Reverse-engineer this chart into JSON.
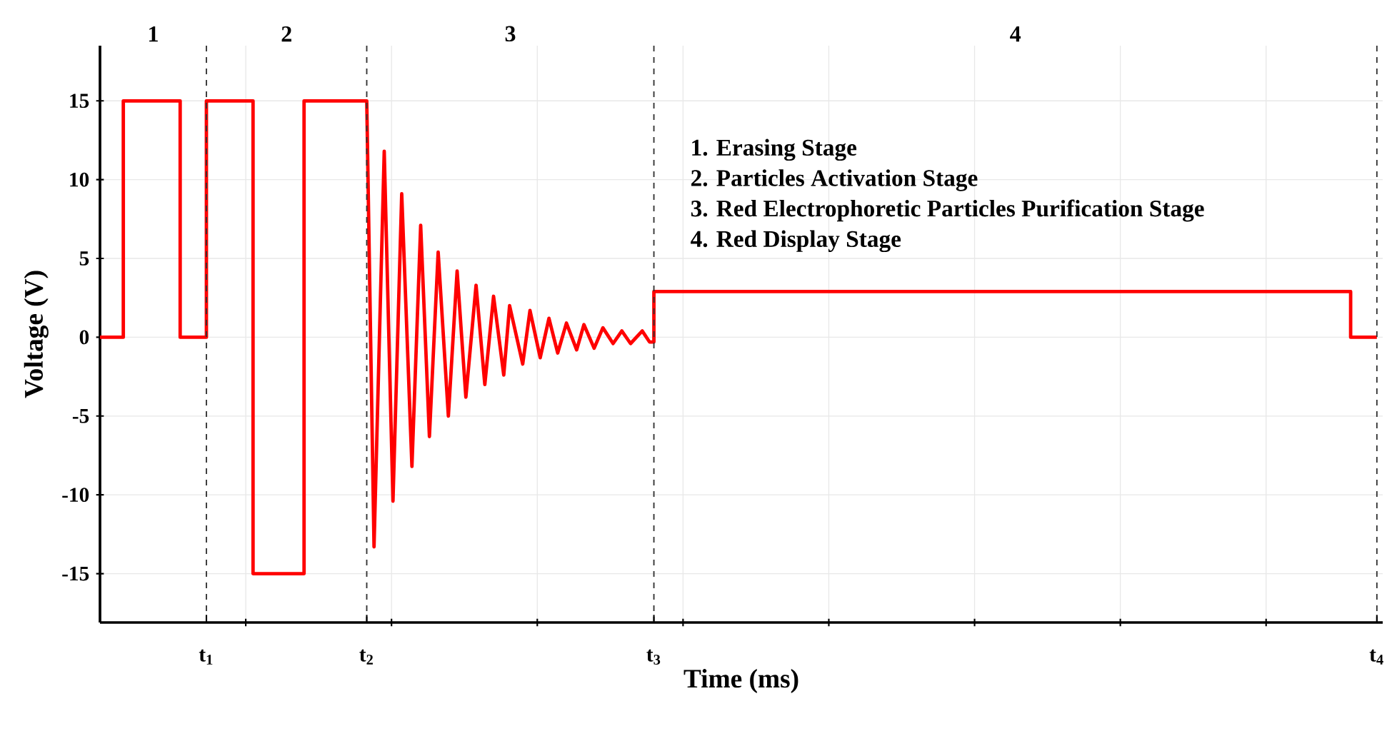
{
  "chart_data": {
    "type": "line",
    "xlabel": "Time (ms)",
    "ylabel": "Voltage (V)",
    "x": [
      0,
      0.16,
      0.16,
      0.55,
      0.55,
      0.73,
      0.73,
      1.05,
      1.05,
      1.4,
      1.4,
      1.83,
      1.88,
      1.95,
      2.01,
      2.07,
      2.14,
      2.2,
      2.26,
      2.32,
      2.39,
      2.45,
      2.51,
      2.58,
      2.64,
      2.7,
      2.77,
      2.81,
      2.9,
      2.95,
      3.02,
      3.08,
      3.14,
      3.2,
      3.27,
      3.32,
      3.39,
      3.45,
      3.52,
      3.58,
      3.64,
      3.72,
      3.77,
      3.8,
      3.8,
      8.58,
      8.58,
      8.76
    ],
    "series": [
      {
        "color": "#ff0000",
        "values": [
          0,
          0,
          15,
          15,
          0,
          0,
          15,
          15,
          -15,
          -15,
          15,
          15,
          -13.3,
          11.8,
          -10.4,
          9.1,
          -8.2,
          7.1,
          -6.3,
          5.4,
          -5.0,
          4.2,
          -3.8,
          3.3,
          -3.0,
          2.6,
          -2.4,
          2.0,
          -1.7,
          1.7,
          -1.3,
          1.2,
          -1.0,
          0.9,
          -0.8,
          0.8,
          -0.7,
          0.6,
          -0.4,
          0.4,
          -0.4,
          0.4,
          -0.3,
          -0.3,
          2.9,
          2.9,
          0,
          0
        ]
      }
    ],
    "xlim": [
      0,
      8.8
    ],
    "ylim": [
      -18.1,
      18.5
    ],
    "tick_labels": "y",
    "xticks": [
      {
        "value": 1,
        "label": null
      },
      {
        "value": 2,
        "label": null
      },
      {
        "value": 3,
        "label": null
      },
      {
        "value": 4,
        "label": null
      },
      {
        "value": 5,
        "label": null
      },
      {
        "value": 6,
        "label": null
      },
      {
        "value": 7,
        "label": null
      },
      {
        "value": 8,
        "label": null
      }
    ],
    "yticks": [
      -15,
      -10,
      -5,
      0,
      5,
      10,
      15
    ],
    "grid": true,
    "ref_lines": [
      {
        "axis": "x",
        "value": 0.73,
        "label": "t$_{1}$",
        "color": "#333333",
        "line_style": "dashed"
      },
      {
        "axis": "x",
        "value": 1.83,
        "label": "t$_{2}$",
        "color": "#333333",
        "line_style": "dashed"
      },
      {
        "axis": "x",
        "value": 3.8,
        "label": "t$_{3}$",
        "color": "#333333",
        "line_style": "dashed"
      },
      {
        "axis": "x",
        "value": 8.76,
        "label": "t$_{4}$",
        "color": "#333333",
        "line_style": "dashed"
      }
    ],
    "annotations": [
      "1",
      "2",
      "3",
      "4",
      "1. Erasing Stage",
      "2. Particles Activation Stage",
      "3. Red Electrophoretic Particles Purification Stage",
      "4. Red Display Stage"
    ]
  }
}
